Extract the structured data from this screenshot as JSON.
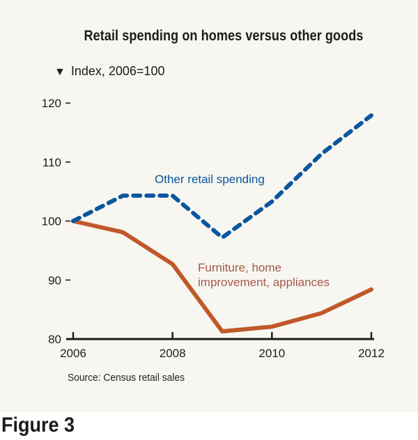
{
  "chart_data": {
    "type": "line",
    "title": "Retail spending on homes versus other goods",
    "subtitle": "Index, 2006=100",
    "subtitle_marker": "▼",
    "xlabel": "",
    "ylabel": "Index, 2006=100",
    "x": [
      2006,
      2007,
      2008,
      2009,
      2010,
      2011,
      2012
    ],
    "x_ticks": [
      2006,
      2008,
      2010,
      2012
    ],
    "x_tick_labels": [
      "2006",
      "2008",
      "2010",
      "2012"
    ],
    "y_ticks": [
      80,
      90,
      100,
      110,
      120
    ],
    "y_tick_labels": [
      "80",
      "90",
      "100",
      "110",
      "120"
    ],
    "xlim": [
      2006,
      2012
    ],
    "ylim": [
      80,
      120
    ],
    "grid": false,
    "series": [
      {
        "name": "Other retail spending",
        "label": "Other retail spending",
        "style": "dashed",
        "color": "#0b56a0",
        "values": [
          100,
          104.3,
          104.3,
          97.2,
          103.3,
          111.4,
          117.9
        ]
      },
      {
        "name": "Furniture, home improvement, appliances",
        "label_lines": [
          "Furniture, home",
          "improvement, appliances"
        ],
        "style": "solid",
        "color": "#c0582a",
        "label_color": "#a45a4a",
        "values": [
          100,
          98.1,
          92.7,
          81.3,
          82.1,
          84.4,
          88.4
        ]
      }
    ],
    "source": "Source: Census retail sales"
  },
  "figure_label": "Figure 3"
}
